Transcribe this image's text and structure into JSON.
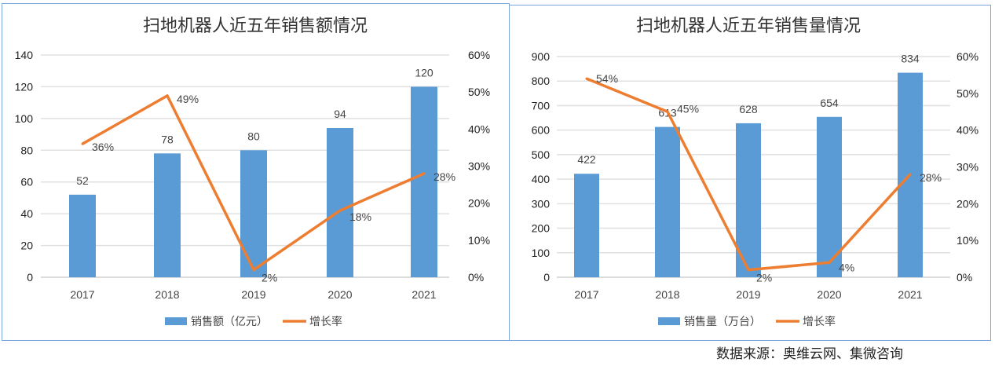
{
  "chart_data": [
    {
      "type": "bar+line",
      "title": "扫地机器人近五年销售额情况",
      "categories": [
        "2017",
        "2018",
        "2019",
        "2020",
        "2021"
      ],
      "series": [
        {
          "name": "销售额（亿元）",
          "type": "bar",
          "axis": "left",
          "values": [
            52,
            78,
            80,
            94,
            120
          ],
          "labels": [
            "52",
            "78",
            "80",
            "94",
            "120"
          ],
          "color": "#5b9bd5"
        },
        {
          "name": "增长率",
          "type": "line",
          "axis": "right",
          "values": [
            36,
            49,
            2,
            18,
            28
          ],
          "labels": [
            "36%",
            "49%",
            "2%",
            "18%",
            "28%"
          ],
          "color": "#ed7d31"
        }
      ],
      "y_left": {
        "range": [
          0,
          140
        ],
        "ticks": [
          "0",
          "20",
          "40",
          "60",
          "80",
          "100",
          "120",
          "140"
        ]
      },
      "y_right": {
        "range": [
          0,
          60
        ],
        "ticks": [
          "0%",
          "10%",
          "20%",
          "30%",
          "40%",
          "50%",
          "60%"
        ]
      },
      "grid": true,
      "legend": "bottom"
    },
    {
      "type": "bar+line",
      "title": "扫地机器人近五年销售量情况",
      "categories": [
        "2017",
        "2018",
        "2019",
        "2020",
        "2021"
      ],
      "series": [
        {
          "name": "销售量（万台）",
          "type": "bar",
          "axis": "left",
          "values": [
            422,
            613,
            628,
            654,
            834
          ],
          "labels": [
            "422",
            "613",
            "628",
            "654",
            "834"
          ],
          "color": "#5b9bd5"
        },
        {
          "name": "增长率",
          "type": "line",
          "axis": "right",
          "values": [
            54,
            45,
            2,
            4,
            28
          ],
          "labels": [
            "54%",
            "45%",
            "2%",
            "4%",
            "28%"
          ],
          "color": "#ed7d31"
        }
      ],
      "y_left": {
        "range": [
          0,
          900
        ],
        "ticks": [
          "0",
          "100",
          "200",
          "300",
          "400",
          "500",
          "600",
          "700",
          "800",
          "900"
        ]
      },
      "y_right": {
        "range": [
          0,
          60
        ],
        "ticks": [
          "0%",
          "10%",
          "20%",
          "30%",
          "40%",
          "50%",
          "60%"
        ]
      },
      "grid": true,
      "legend": "bottom"
    }
  ],
  "source": "数据来源：奥维云网、集微咨询"
}
